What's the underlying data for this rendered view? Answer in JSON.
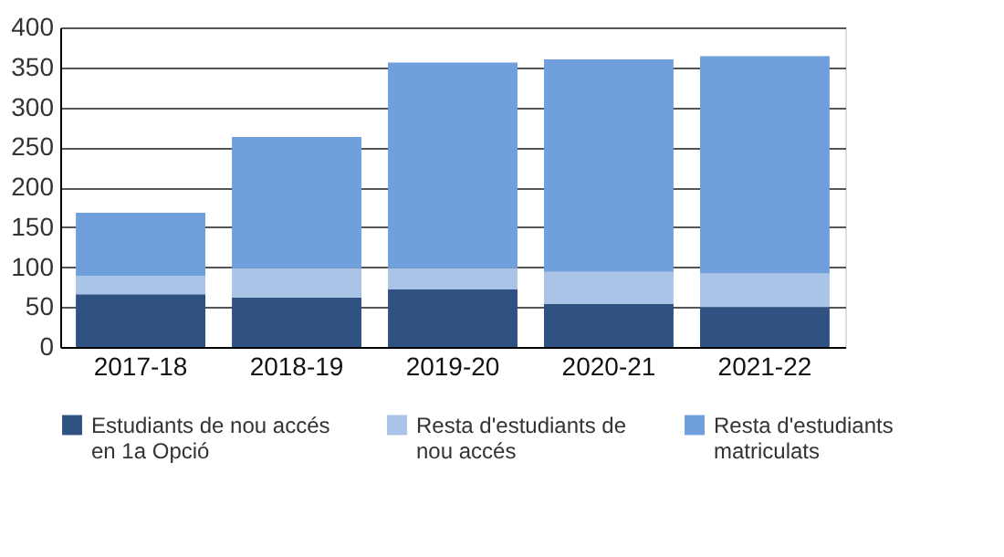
{
  "chart_data": {
    "type": "bar",
    "stacked": true,
    "categories": [
      "2017-18",
      "2018-19",
      "2019-20",
      "2020-21",
      "2021-22"
    ],
    "series": [
      {
        "name": "Estudiants de nou accés en 1a Opció",
        "color": "#2f5283",
        "values": [
          66,
          62,
          72,
          54,
          50
        ]
      },
      {
        "name": "Resta d'estudiants de nou accés",
        "color": "#a9c4e6",
        "values": [
          23,
          37,
          27,
          40,
          42
        ]
      },
      {
        "name": "Resta d'estudiants matriculats",
        "color": "#6f9fdc",
        "values": [
          79,
          164,
          257,
          266,
          272
        ]
      }
    ],
    "ylim": [
      0,
      400
    ],
    "yticks": [
      0,
      50,
      100,
      150,
      200,
      250,
      300,
      350,
      400
    ],
    "grid": "y",
    "legend": "bottom"
  }
}
